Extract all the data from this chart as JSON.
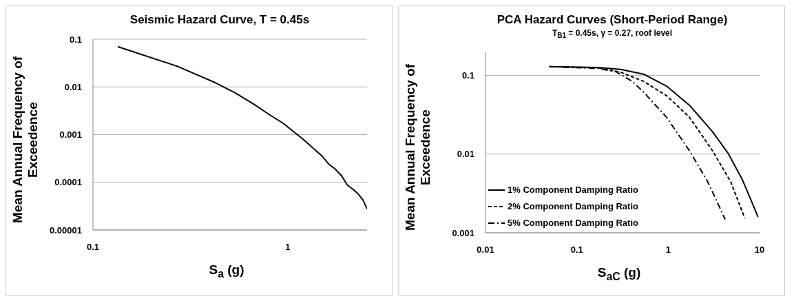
{
  "chart_data": [
    {
      "type": "line",
      "title": "Seismic Hazard Curve, T = 0.45s",
      "xlabel": "S$_{a}$ (g)",
      "ylabel": "Mean Annual Frequency of Exceedence",
      "log": "xy",
      "grid": "y",
      "legend": false,
      "marker": "none",
      "xlim": [
        0.1,
        2.55
      ],
      "xticks": [
        0.1,
        1
      ],
      "ylim": [
        1e-05,
        0.1
      ],
      "yticks": [
        {
          "value": 1e-05,
          "label": "0.00001"
        },
        0.0001,
        0.001,
        0.01,
        0.1
      ],
      "series": [
        {
          "color": "#000000",
          "line_style": "solid",
          "x": [
            0.134,
            0.269,
            0.426,
            0.537,
            0.676,
            0.812,
            0.946,
            1.21,
            1.49,
            1.62,
            1.75,
            1.89,
            2.02,
            2.17,
            2.3,
            2.43,
            2.55
          ],
          "values": [
            0.0698,
            0.0274,
            0.0122,
            0.0075,
            0.00424,
            0.00256,
            0.00173,
            0.000773,
            0.000363,
            0.000242,
            0.00019,
            0.000136,
            8.75e-05,
            7.05e-05,
            5.68e-05,
            4.26e-05,
            2.77e-05
          ]
        }
      ]
    },
    {
      "type": "line",
      "title": "PCA Hazard Curves (Short-Period Range)",
      "subtitle": "T$_{B1}$ = 0.45s, γ = 0.27, roof level",
      "xlabel": "S$_{aC}$ (g)",
      "ylabel": "Mean Annual Frequency of Exceedence",
      "log": "xy",
      "grid": "y",
      "legend": "bottom left",
      "marker": "none",
      "xlim": [
        0.01,
        10
      ],
      "xticks": [
        0.01,
        0.1,
        1,
        10
      ],
      "ylim": [
        0.001,
        0.2
      ],
      "yticks": [
        0.001,
        0.01,
        0.1
      ],
      "series": [
        {
          "name": "1% Component Damping Ratio",
          "color": "#000000",
          "line_style": "solid",
          "x": [
            0.05,
            0.17,
            0.302,
            0.538,
            0.96,
            1.71,
            3.06,
            4.58,
            6.48,
            8.17,
            9.6
          ],
          "values": [
            0.129,
            0.126,
            0.119,
            0.1035,
            0.0729,
            0.0416,
            0.0192,
            0.01,
            0.00472,
            0.00251,
            0.00159
          ]
        },
        {
          "name": "2% Component Damping Ratio",
          "color": "#000000",
          "line_style": "dashed",
          "x": [
            0.05,
            0.17,
            0.302,
            0.538,
            0.96,
            1.71,
            3.06,
            4.85,
            6.87
          ],
          "values": [
            0.129,
            0.125,
            0.1095,
            0.0839,
            0.0551,
            0.0293,
            0.011,
            0.0044,
            0.00154
          ]
        },
        {
          "name": "5% Component Damping Ratio",
          "color": "#000000",
          "line_style": "dashdot",
          "x": [
            0.05,
            0.17,
            0.269,
            0.404,
            0.538,
            0.96,
            1.71,
            2.72,
            4.2
          ],
          "values": [
            0.129,
            0.122,
            0.111,
            0.0839,
            0.0612,
            0.0293,
            0.011,
            0.0044,
            0.00148
          ]
        }
      ]
    }
  ]
}
